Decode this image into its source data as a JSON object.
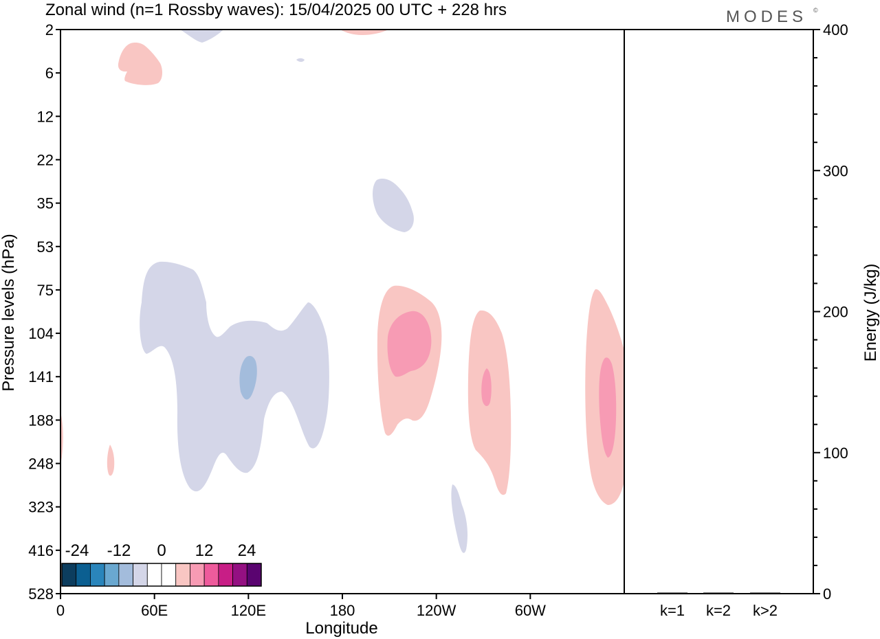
{
  "title": "Zonal wind (n=1 Rossby waves):  15/04/2025  00 UTC  + 228 hrs",
  "logo": "MODES",
  "logo_mark": "©",
  "chart_data": [
    {
      "type": "contour",
      "xlabel": "Longitude",
      "ylabel": "Pressure levels (hPa)",
      "x_ticks": [
        "0",
        "60E",
        "120E",
        "180",
        "120W",
        "60W"
      ],
      "x_tick_degrees": [
        0,
        60,
        120,
        180,
        240,
        300
      ],
      "xlim_degrees": [
        0,
        360
      ],
      "y_ticks": [
        "2",
        "6",
        "12",
        "22",
        "35",
        "53",
        "75",
        "104",
        "141",
        "188",
        "248",
        "323",
        "416",
        "528"
      ],
      "y_scale": "level-index (top = 2 hPa, bottom = 528 hPa)",
      "colorbar": {
        "tick_labels": [
          "-24",
          "-12",
          "0",
          "12",
          "24"
        ],
        "colors": [
          "#0c3d5e",
          "#0b5f91",
          "#2a85bb",
          "#6aa8d0",
          "#a3bcdc",
          "#d4d6e8",
          "#ffffff",
          "#ffffff",
          "#f9c6c3",
          "#f79bb4",
          "#ee5b9c",
          "#c81e86",
          "#941082",
          "#5a0470"
        ]
      },
      "features": [
        {
          "sign": "negative",
          "level": "weak",
          "lon_deg": 100,
          "p_hPa": 141,
          "color": "#d4d6e8"
        },
        {
          "sign": "negative",
          "level": "moderate",
          "lon_deg": 120,
          "p_hPa": 141,
          "color": "#a3bcdc"
        },
        {
          "sign": "negative",
          "level": "weak",
          "lon_deg": 205,
          "p_hPa": 35,
          "color": "#d4d6e8"
        },
        {
          "sign": "negative",
          "level": "weak",
          "lon_deg": 255,
          "p_hPa": 323,
          "color": "#d4d6e8"
        },
        {
          "sign": "negative",
          "level": "weak",
          "lon_deg": 90,
          "p_hPa": 2,
          "color": "#d4d6e8"
        },
        {
          "sign": "positive",
          "level": "weak",
          "lon_deg": 210,
          "p_hPa": 141,
          "color": "#f9c6c3"
        },
        {
          "sign": "positive",
          "level": "moderate",
          "lon_deg": 210,
          "p_hPa": 104,
          "color": "#f79bb4"
        },
        {
          "sign": "positive",
          "level": "weak",
          "lon_deg": 275,
          "p_hPa": 141,
          "color": "#f9c6c3"
        },
        {
          "sign": "positive",
          "level": "moderate",
          "lon_deg": 272,
          "p_hPa": 141,
          "color": "#f79bb4"
        },
        {
          "sign": "positive",
          "level": "weak",
          "lon_deg": 345,
          "p_hPa": 188,
          "color": "#f9c6c3"
        },
        {
          "sign": "positive",
          "level": "moderate",
          "lon_deg": 347,
          "p_hPa": 188,
          "color": "#f79bb4"
        },
        {
          "sign": "positive",
          "level": "weak",
          "lon_deg": 52,
          "p_hPa": 6,
          "color": "#f9c6c3"
        },
        {
          "sign": "positive",
          "level": "weak",
          "lon_deg": 30,
          "p_hPa": 248,
          "color": "#f9c6c3"
        }
      ]
    },
    {
      "type": "bar",
      "categories": [
        "k=1",
        "k=2",
        "k>2"
      ],
      "values": [
        0.3,
        0.3,
        0.6
      ],
      "ylabel": "Energy (J/kg)",
      "ylim": [
        0,
        400
      ],
      "y_ticks": [
        "0",
        "100",
        "200",
        "300",
        "400"
      ],
      "y_tick_values": [
        0,
        100,
        200,
        300,
        400
      ]
    }
  ]
}
